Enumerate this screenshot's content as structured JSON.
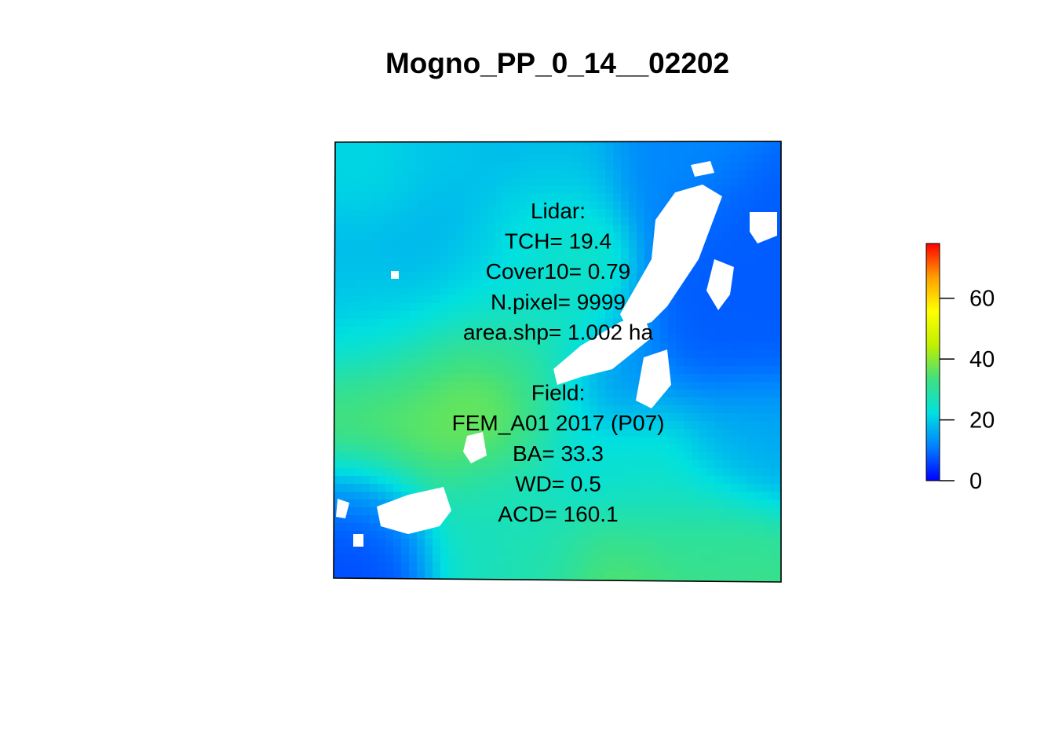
{
  "chart_data": {
    "type": "heatmap",
    "title": "Mogno_PP_0_14__02202",
    "xlabel": "",
    "ylabel": "",
    "grid": false,
    "legend": "right",
    "colorbar": {
      "min": 0,
      "max": 78,
      "ticks": [
        {
          "value": 0,
          "label": "0"
        },
        {
          "value": 20,
          "label": "20"
        },
        {
          "value": 40,
          "label": "40"
        },
        {
          "value": 60,
          "label": "60"
        }
      ],
      "colors": [
        "#0000ff",
        "#0080ff",
        "#00e0e0",
        "#40e080",
        "#c0f000",
        "#ffff00",
        "#ffa000",
        "#ff0000"
      ]
    },
    "annotations": [
      "Lidar:",
      "TCH= 19.4",
      "Cover10= 0.79",
      "N.pixel= 9999",
      "area.shp= 1.002 ha",
      "",
      "Field:",
      "FEM_A01 2017 (P07)",
      "BA= 33.3",
      "WD= 0.5",
      "ACD= 160.1"
    ]
  }
}
